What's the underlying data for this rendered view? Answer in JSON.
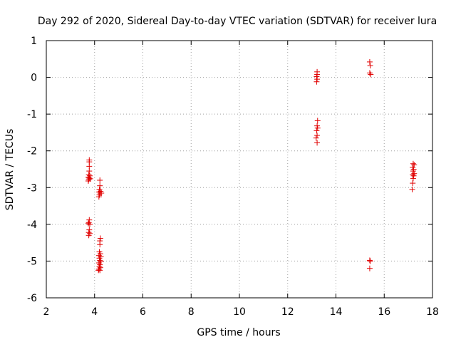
{
  "chart_data": {
    "type": "scatter",
    "title": "Day 292 of 2020, Sidereal Day-to-day VTEC variation (SDTVAR) for receiver lura",
    "xlabel": "GPS time / hours",
    "ylabel": "SDTVAR / TECUs",
    "xlim": [
      2,
      18
    ],
    "ylim": [
      -6,
      1
    ],
    "xticks": [
      2,
      4,
      6,
      8,
      10,
      12,
      14,
      16,
      18
    ],
    "yticks": [
      -6,
      -5,
      -4,
      -3,
      -2,
      -1,
      0,
      1
    ],
    "xtick_labels": [
      "2",
      "4",
      "6",
      "8",
      "10",
      "12",
      "14",
      "16",
      "18"
    ],
    "ytick_labels": [
      "-6",
      "-5",
      "-4",
      "-3",
      "-2",
      "-1",
      "0",
      "1"
    ],
    "grid": true,
    "marker": "+",
    "color": "#e00000",
    "series": [
      {
        "name": "SDTVAR",
        "points": [
          [
            3.78,
            -2.25
          ],
          [
            3.78,
            -2.3
          ],
          [
            3.78,
            -2.42
          ],
          [
            3.78,
            -2.55
          ],
          [
            3.76,
            -2.65
          ],
          [
            3.8,
            -2.68
          ],
          [
            3.74,
            -2.72
          ],
          [
            3.78,
            -2.74
          ],
          [
            3.82,
            -2.76
          ],
          [
            3.76,
            -2.78
          ],
          [
            3.74,
            -2.82
          ],
          [
            3.78,
            -3.88
          ],
          [
            3.76,
            -3.95
          ],
          [
            3.74,
            -3.98
          ],
          [
            3.8,
            -4.0
          ],
          [
            3.78,
            -4.15
          ],
          [
            3.76,
            -4.22
          ],
          [
            3.8,
            -4.25
          ],
          [
            3.76,
            -4.3
          ],
          [
            4.22,
            -2.8
          ],
          [
            4.22,
            -2.95
          ],
          [
            4.2,
            -3.05
          ],
          [
            4.25,
            -3.1
          ],
          [
            4.18,
            -3.12
          ],
          [
            4.24,
            -3.15
          ],
          [
            4.28,
            -3.15
          ],
          [
            4.2,
            -3.2
          ],
          [
            4.18,
            -3.25
          ],
          [
            4.24,
            -4.38
          ],
          [
            4.22,
            -4.45
          ],
          [
            4.22,
            -4.55
          ],
          [
            4.2,
            -4.75
          ],
          [
            4.24,
            -4.8
          ],
          [
            4.18,
            -4.85
          ],
          [
            4.26,
            -4.88
          ],
          [
            4.2,
            -4.92
          ],
          [
            4.22,
            -4.98
          ],
          [
            4.26,
            -5.02
          ],
          [
            4.18,
            -5.05
          ],
          [
            4.22,
            -5.1
          ],
          [
            4.2,
            -5.15
          ],
          [
            4.24,
            -5.18
          ],
          [
            4.18,
            -5.22
          ],
          [
            4.22,
            -5.25
          ],
          [
            4.16,
            -5.25
          ],
          [
            13.22,
            0.15
          ],
          [
            13.22,
            0.08
          ],
          [
            13.2,
            0.02
          ],
          [
            13.22,
            -0.05
          ],
          [
            13.2,
            -0.12
          ],
          [
            13.24,
            -1.18
          ],
          [
            13.22,
            -1.32
          ],
          [
            13.24,
            -1.38
          ],
          [
            13.2,
            -1.45
          ],
          [
            13.22,
            -1.58
          ],
          [
            13.18,
            -1.65
          ],
          [
            13.22,
            -1.78
          ],
          [
            15.4,
            0.42
          ],
          [
            15.42,
            0.32
          ],
          [
            15.4,
            0.12
          ],
          [
            15.44,
            0.08
          ],
          [
            15.4,
            -4.98
          ],
          [
            15.42,
            -5.0
          ],
          [
            15.4,
            -5.2
          ],
          [
            17.2,
            -2.35
          ],
          [
            17.24,
            -2.38
          ],
          [
            17.18,
            -2.45
          ],
          [
            17.22,
            -2.5
          ],
          [
            17.2,
            -2.55
          ],
          [
            17.24,
            -2.62
          ],
          [
            17.18,
            -2.65
          ],
          [
            17.22,
            -2.68
          ],
          [
            17.2,
            -2.75
          ],
          [
            17.18,
            -2.88
          ],
          [
            17.16,
            -3.05
          ]
        ]
      }
    ]
  }
}
